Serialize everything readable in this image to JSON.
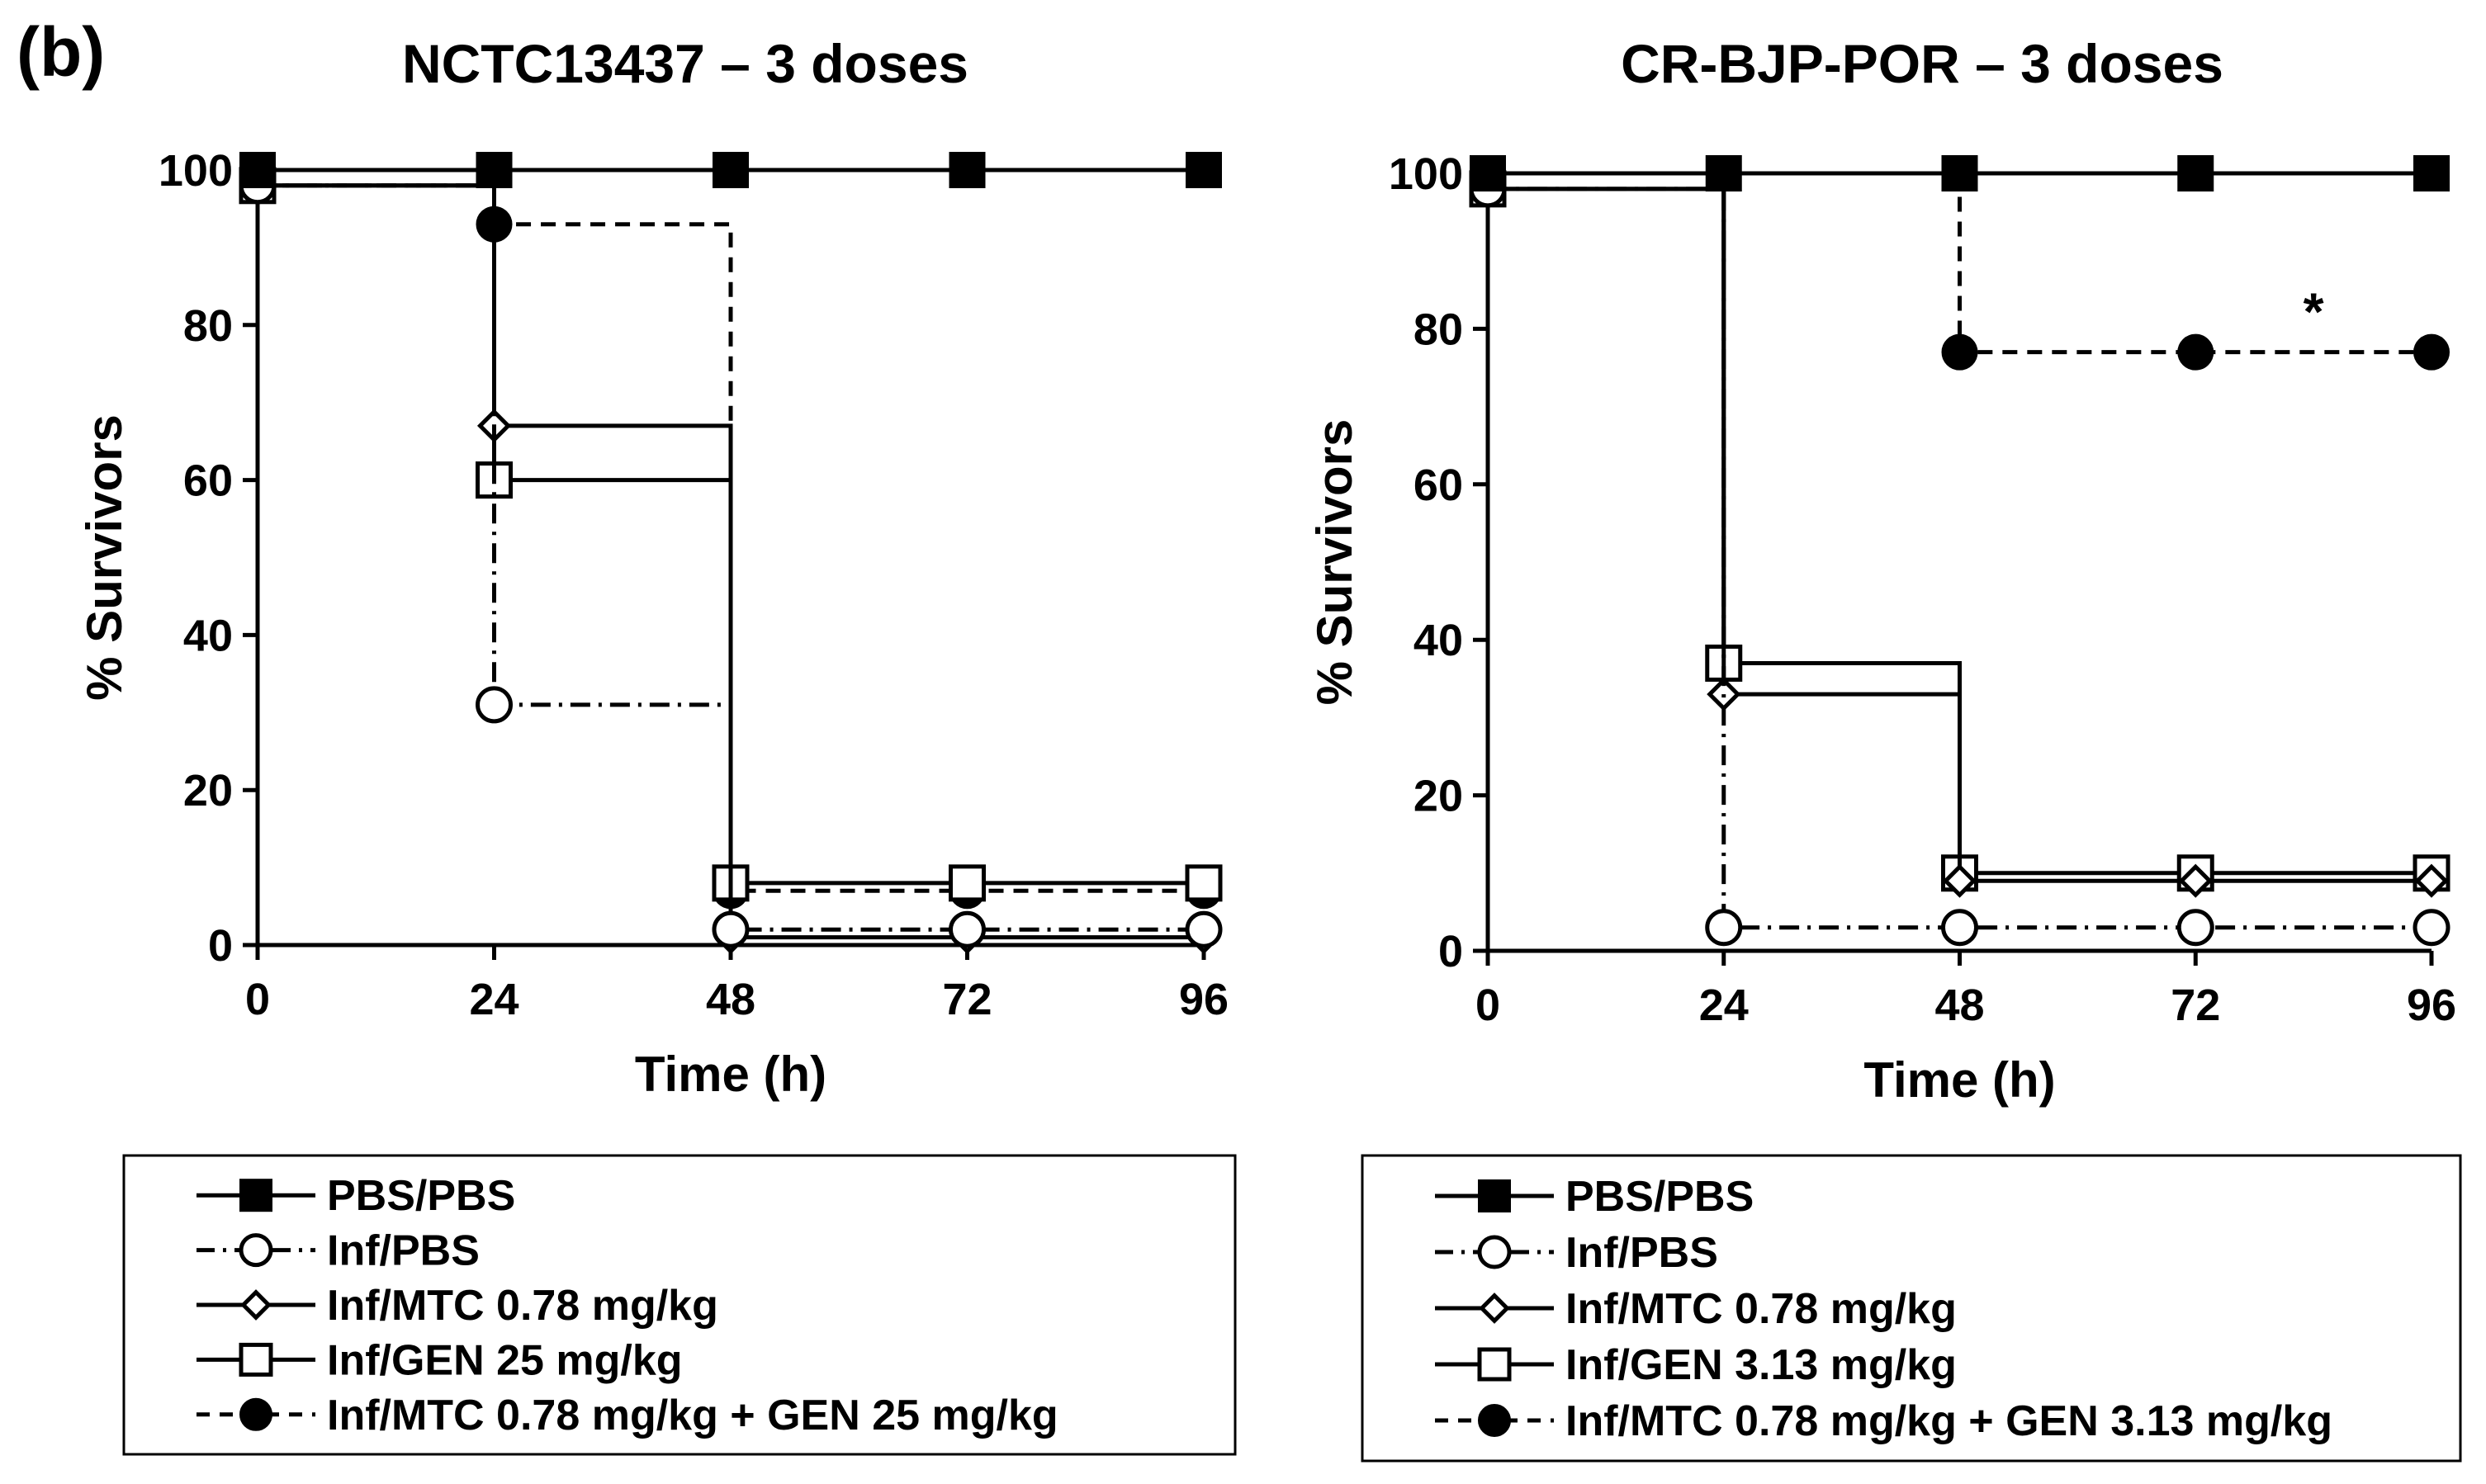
{
  "panel_label": "(b)",
  "chart_data": [
    {
      "type": "line",
      "step": true,
      "title": "NCTC13437 – 3 doses",
      "xlabel": "Time (h)",
      "ylabel": "% Survivors",
      "x": [
        0,
        24,
        48,
        72,
        96
      ],
      "xlim": [
        0,
        96
      ],
      "ylim": [
        0,
        100
      ],
      "xticks": [
        "0",
        "24",
        "48",
        "72",
        "96"
      ],
      "yticks": [
        "0",
        "20",
        "40",
        "60",
        "80",
        "100"
      ],
      "grid": false,
      "legend_position": "bottom",
      "annotations": [],
      "series": [
        {
          "name": "PBS/PBS",
          "style": "solid",
          "marker": "filled-square",
          "values": [
            100,
            100,
            100,
            100,
            100
          ]
        },
        {
          "name": "Inf/PBS",
          "style": "dash-dot",
          "marker": "open-circle",
          "values": [
            98,
            31,
            2,
            2,
            2
          ]
        },
        {
          "name": "Inf/MTC 0.78 mg/kg",
          "style": "solid",
          "marker": "open-diamond",
          "values": [
            98,
            67,
            1,
            1,
            1
          ]
        },
        {
          "name": "Inf/GEN 25 mg/kg",
          "style": "solid",
          "marker": "open-square",
          "values": [
            98,
            60,
            8,
            8,
            8
          ]
        },
        {
          "name": "Inf/MTC 0.78 mg/kg + GEN 25 mg/kg",
          "style": "dashed",
          "marker": "filled-circle",
          "values": [
            98,
            93,
            7,
            7,
            7
          ]
        }
      ]
    },
    {
      "type": "line",
      "step": true,
      "title": "CR-BJP-POR – 3 doses",
      "xlabel": "Time (h)",
      "ylabel": "% Survivors",
      "x": [
        0,
        24,
        48,
        72,
        96
      ],
      "xlim": [
        0,
        96
      ],
      "ylim": [
        0,
        100
      ],
      "xticks": [
        "0",
        "24",
        "48",
        "72",
        "96"
      ],
      "yticks": [
        "0",
        "20",
        "40",
        "60",
        "80",
        "100"
      ],
      "grid": false,
      "legend_position": "bottom",
      "annotations": [
        {
          "text": "*",
          "x": 84,
          "y": 82
        }
      ],
      "series": [
        {
          "name": "PBS/PBS",
          "style": "solid",
          "marker": "filled-square",
          "values": [
            100,
            100,
            100,
            100,
            100
          ]
        },
        {
          "name": "Inf/PBS",
          "style": "dash-dot",
          "marker": "open-circle",
          "values": [
            98,
            3,
            3,
            3,
            3
          ]
        },
        {
          "name": "Inf/MTC 0.78 mg/kg",
          "style": "solid",
          "marker": "open-diamond",
          "values": [
            98,
            33,
            9,
            9,
            9
          ]
        },
        {
          "name": "Inf/GEN 3.13 mg/kg",
          "style": "solid",
          "marker": "open-square",
          "values": [
            98,
            37,
            10,
            10,
            10
          ]
        },
        {
          "name": "Inf/MTC 0.78 mg/kg + GEN 3.13 mg/kg",
          "style": "dashed",
          "marker": "filled-circle",
          "values": [
            100,
            100,
            77,
            77,
            77
          ]
        }
      ]
    }
  ]
}
